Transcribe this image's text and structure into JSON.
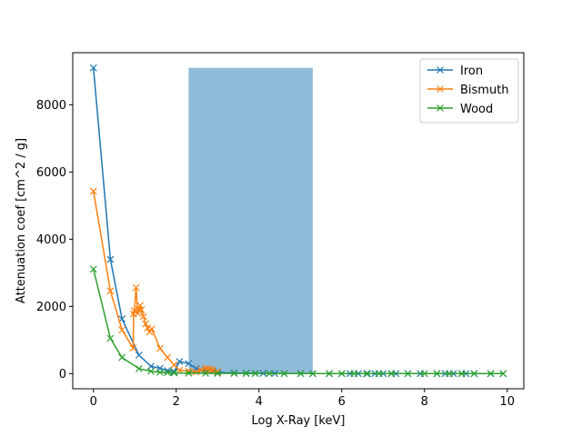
{
  "chart_data": {
    "type": "line",
    "xlabel": "Log X-Ray [keV]",
    "ylabel": "Attenuation coef [cm^2 / g]",
    "xlim": [
      -0.5,
      10.4
    ],
    "ylim": [
      -450,
      9550
    ],
    "xticks": [
      0,
      2,
      4,
      6,
      8,
      10
    ],
    "yticks": [
      0,
      2000,
      4000,
      6000,
      8000
    ],
    "grid": false,
    "legend_position": "top-right",
    "marker": "x",
    "shaded_region": {
      "x_start": 2.3,
      "x_end": 5.3,
      "y_start": 0,
      "y_end": 9100,
      "color": "#8fbbd9"
    },
    "series": [
      {
        "name": "Iron",
        "color": "#1f77b4",
        "x": [
          0,
          0.41,
          0.69,
          1.1,
          1.39,
          1.61,
          1.79,
          1.95,
          2.08,
          2.3,
          2.48,
          2.71,
          2.89,
          3.0,
          3.4,
          3.69,
          3.91,
          4.1,
          4.25,
          4.38,
          4.61,
          5.01,
          5.3,
          5.7,
          6.0,
          6.2,
          6.4,
          6.62,
          6.8,
          7.0,
          7.2,
          7.31,
          7.6,
          7.9,
          8.3,
          8.5,
          8.7,
          8.9,
          9.0,
          9.2,
          9.6,
          9.9
        ],
        "y": [
          9100,
          3400,
          1630,
          550,
          220,
          160,
          90,
          60,
          360,
          300,
          150,
          100,
          80,
          40,
          20,
          15,
          10,
          8,
          6,
          5,
          4,
          3,
          2,
          2,
          2,
          2,
          1,
          1,
          1,
          1,
          1,
          1,
          1,
          1,
          1,
          1,
          1,
          1,
          1,
          1,
          1,
          1
        ]
      },
      {
        "name": "Bismuth",
        "color": "#ff7f0e",
        "x": [
          0,
          0.41,
          0.69,
          0.96,
          0.97,
          0.99,
          1.03,
          1.07,
          1.1,
          1.13,
          1.16,
          1.21,
          1.26,
          1.31,
          1.36,
          1.41,
          1.61,
          1.79,
          1.95,
          2.08,
          2.3,
          2.48,
          2.6,
          2.71,
          2.77,
          2.83,
          2.89,
          3.0
        ],
        "y": [
          5430,
          2460,
          1300,
          760,
          1780,
          1870,
          2560,
          1790,
          1900,
          2030,
          1900,
          1700,
          1480,
          1360,
          1240,
          1330,
          750,
          480,
          260,
          100,
          80,
          50,
          110,
          150,
          140,
          120,
          110,
          60
        ]
      },
      {
        "name": "Wood",
        "color": "#2ca02c",
        "x": [
          0,
          0.41,
          0.69,
          1.1,
          1.39,
          1.61,
          1.79,
          1.95,
          2.3,
          2.71,
          3.0,
          3.4,
          3.69,
          3.91,
          4.25,
          4.61,
          5.01,
          5.3,
          5.7,
          6.0,
          6.3,
          6.6,
          6.9,
          7.2,
          7.6,
          8.0,
          8.3,
          8.6,
          8.9,
          9.2,
          9.6,
          9.9
        ],
        "y": [
          3110,
          1050,
          480,
          150,
          70,
          40,
          30,
          20,
          15,
          10,
          8,
          6,
          5,
          4,
          3,
          3,
          2,
          2,
          2,
          1,
          1,
          1,
          1,
          1,
          1,
          1,
          1,
          1,
          1,
          1,
          1,
          1
        ]
      }
    ]
  }
}
